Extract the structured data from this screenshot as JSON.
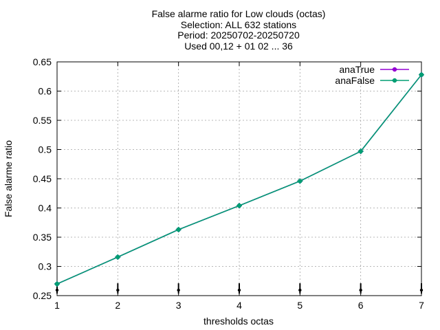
{
  "chart_data": {
    "type": "line",
    "title_lines": [
      "False alarme ratio  for Low clouds (octas)",
      "Selection: ALL    632 stations",
      "Period: 20250702-20250720",
      "Used 00,12 + 01 02 ... 36"
    ],
    "xlabel": "thresholds octas",
    "ylabel": "False alarme ratio",
    "xlim": [
      1,
      7
    ],
    "ylim": [
      0.25,
      0.65
    ],
    "x_ticks": [
      "1",
      "2",
      "3",
      "4",
      "5",
      "6",
      "7"
    ],
    "y_ticks": [
      "0.25",
      "0.3",
      "0.35",
      "0.4",
      "0.45",
      "0.5",
      "0.55",
      "0.6",
      "0.65"
    ],
    "grid": true,
    "legend_position": "top-right",
    "x": [
      1,
      2,
      3,
      4,
      5,
      6,
      7
    ],
    "series": [
      {
        "name": "anaTrue",
        "color": "#9400d3",
        "values": [
          0.27,
          0.316,
          0.363,
          0.404,
          0.446,
          0.497,
          0.628
        ]
      },
      {
        "name": "anaFalse",
        "color": "#009e73",
        "values": [
          0.27,
          0.316,
          0.363,
          0.404,
          0.446,
          0.497,
          0.628
        ]
      }
    ]
  }
}
